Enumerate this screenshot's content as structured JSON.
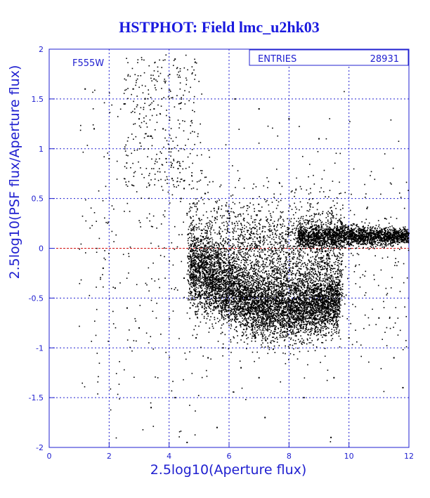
{
  "chart_data": {
    "type": "scatter",
    "title": "HSTPHOT: Field lmc_u2hk03",
    "xlabel": "2.5log10(Aperture flux)",
    "ylabel": "2.5log10(PSF flux/Aperture flux)",
    "xlim": [
      0,
      12
    ],
    "ylim": [
      -2,
      2
    ],
    "x_ticks": [
      "0",
      "2",
      "4",
      "6",
      "8",
      "10",
      "12"
    ],
    "y_ticks": [
      "-2",
      "-1.5",
      "-1",
      "-0.5",
      "0",
      "0.5",
      "1",
      "1.5",
      "2"
    ],
    "grid": true,
    "filter_label": "F555W",
    "stats": {
      "entries_label": "ENTRIES",
      "entries_value": "28931"
    },
    "reference_line": {
      "y": 0,
      "color": "#d01010"
    },
    "colors": {
      "axis": "#2020d0",
      "points": "#000000",
      "title": "#1a1adf"
    },
    "series": [
      {
        "values_note": "",
        "points": [
          [
            5.0,
            -0.2
          ],
          [
            5.2,
            -0.3
          ],
          [
            5.4,
            -0.35
          ],
          [
            5.6,
            -0.4
          ],
          [
            5.8,
            -0.42
          ],
          [
            6.0,
            -0.45
          ],
          [
            6.2,
            -0.47
          ],
          [
            6.4,
            -0.5
          ],
          [
            6.6,
            -0.5
          ],
          [
            6.8,
            -0.52
          ],
          [
            7.0,
            -0.53
          ],
          [
            7.2,
            -0.54
          ],
          [
            7.4,
            -0.55
          ],
          [
            7.6,
            -0.56
          ],
          [
            7.8,
            -0.56
          ],
          [
            8.0,
            -0.57
          ],
          [
            8.2,
            -0.57
          ],
          [
            8.4,
            -0.56
          ],
          [
            8.6,
            -0.55
          ],
          [
            8.8,
            -0.53
          ],
          [
            9.0,
            -0.52
          ],
          [
            9.2,
            -0.5
          ],
          [
            9.4,
            -0.48
          ],
          [
            9.6,
            -0.46
          ],
          [
            5.3,
            -0.1
          ],
          [
            5.6,
            -0.15
          ],
          [
            6.1,
            -0.25
          ],
          [
            6.5,
            -0.3
          ],
          [
            7.0,
            -0.35
          ],
          [
            7.5,
            -0.4
          ],
          [
            8.0,
            -0.45
          ],
          [
            8.5,
            -0.48
          ],
          [
            5.1,
            -0.55
          ],
          [
            5.5,
            -0.62
          ],
          [
            6.0,
            -0.7
          ],
          [
            6.5,
            -0.68
          ],
          [
            7.0,
            -0.72
          ],
          [
            7.5,
            -0.7
          ],
          [
            8.0,
            -0.72
          ],
          [
            8.5,
            -0.7
          ],
          [
            8.6,
            0.05
          ],
          [
            8.8,
            0.08
          ],
          [
            9.0,
            0.1
          ],
          [
            9.2,
            0.11
          ],
          [
            9.4,
            0.12
          ],
          [
            9.6,
            0.13
          ],
          [
            9.8,
            0.13
          ],
          [
            10.0,
            0.14
          ],
          [
            10.2,
            0.14
          ],
          [
            10.4,
            0.14
          ],
          [
            10.6,
            0.15
          ],
          [
            10.8,
            0.15
          ],
          [
            11.0,
            0.15
          ],
          [
            11.2,
            0.15
          ],
          [
            11.4,
            0.15
          ],
          [
            11.6,
            0.15
          ],
          [
            11.8,
            0.15
          ],
          [
            12.0,
            0.15
          ],
          [
            10.0,
            0.1
          ],
          [
            10.5,
            0.18
          ],
          [
            11.0,
            0.12
          ],
          [
            11.5,
            0.18
          ],
          [
            9.5,
            0.08
          ],
          [
            9.0,
            0.05
          ],
          [
            5.0,
            0.3
          ],
          [
            5.5,
            0.4
          ],
          [
            6.0,
            0.35
          ],
          [
            6.5,
            0.3
          ],
          [
            7.0,
            0.25
          ],
          [
            7.5,
            0.22
          ],
          [
            8.0,
            0.2
          ],
          [
            4.8,
            0.45
          ],
          [
            4.5,
            0.6
          ],
          [
            4.3,
            0.8
          ],
          [
            4.0,
            1.0
          ],
          [
            3.8,
            1.2
          ],
          [
            3.5,
            1.4
          ],
          [
            3.2,
            1.5
          ],
          [
            3.0,
            1.3
          ],
          [
            2.8,
            1.6
          ],
          [
            2.5,
            1.45
          ],
          [
            3.5,
            1.7
          ],
          [
            4.2,
            1.9
          ],
          [
            3.9,
            0.9
          ],
          [
            4.1,
            0.7
          ],
          [
            4.4,
            0.5
          ],
          [
            4.6,
            0.35
          ],
          [
            5.2,
            0.55
          ],
          [
            4.5,
            -0.3
          ],
          [
            4.7,
            -0.6
          ],
          [
            4.9,
            -0.9
          ],
          [
            5.3,
            -1.1
          ],
          [
            5.8,
            -1.0
          ],
          [
            6.4,
            -1.2
          ],
          [
            7.0,
            -1.3
          ],
          [
            4.2,
            -1.5
          ],
          [
            3.0,
            -0.8
          ],
          [
            2.6,
            -0.6
          ],
          [
            2.2,
            -0.4
          ],
          [
            1.8,
            -0.2
          ],
          [
            1.2,
            1.6
          ],
          [
            1.5,
            1.2
          ],
          [
            2.0,
            0.9
          ],
          [
            6.2,
            1.5
          ],
          [
            7.0,
            1.4
          ],
          [
            8.0,
            1.3
          ],
          [
            9.0,
            1.1
          ],
          [
            10.0,
            -0.9
          ],
          [
            11.0,
            -0.7
          ],
          [
            11.8,
            -1.4
          ],
          [
            11.5,
            -1.1
          ],
          [
            9.5,
            -1.3
          ],
          [
            8.5,
            -1.5
          ],
          [
            7.2,
            -1.7
          ],
          [
            5.6,
            -1.8
          ],
          [
            3.4,
            -1.6
          ],
          [
            4.6,
            -1.95
          ],
          [
            9.4,
            -1.9
          ],
          [
            10.6,
            0.4
          ],
          [
            11.2,
            0.3
          ]
        ]
      }
    ]
  }
}
